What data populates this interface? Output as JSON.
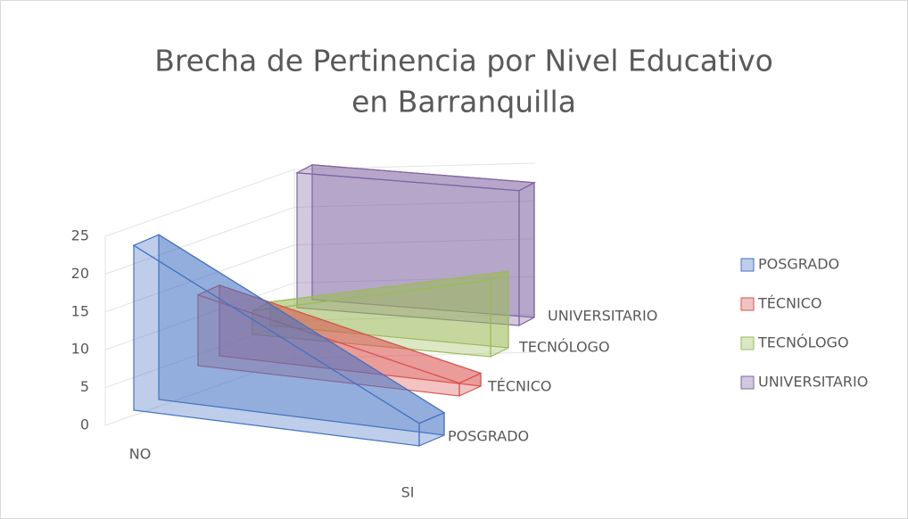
{
  "chart_data": {
    "type": "area3d",
    "title": [
      "Brecha de Pertinencia por Nivel Educativo",
      "en Barranquilla"
    ],
    "categories": [
      "NO",
      "SI"
    ],
    "series": [
      {
        "name": "POSGRADO",
        "color": "#4472c4",
        "values": [
          22,
          3
        ]
      },
      {
        "name": "TÉCNICO",
        "color": "#d9534f",
        "values": [
          11,
          2
        ]
      },
      {
        "name": "TECNÓLOGO",
        "color": "#9bbb59",
        "values": [
          4,
          13
        ]
      },
      {
        "name": "UNIVERSITARIO",
        "color": "#8064a2",
        "values": [
          24,
          24
        ]
      }
    ],
    "ylim": [
      0,
      25
    ],
    "yticks": [
      0,
      5,
      10,
      15,
      20,
      25
    ],
    "grid": true,
    "legend": "right"
  }
}
